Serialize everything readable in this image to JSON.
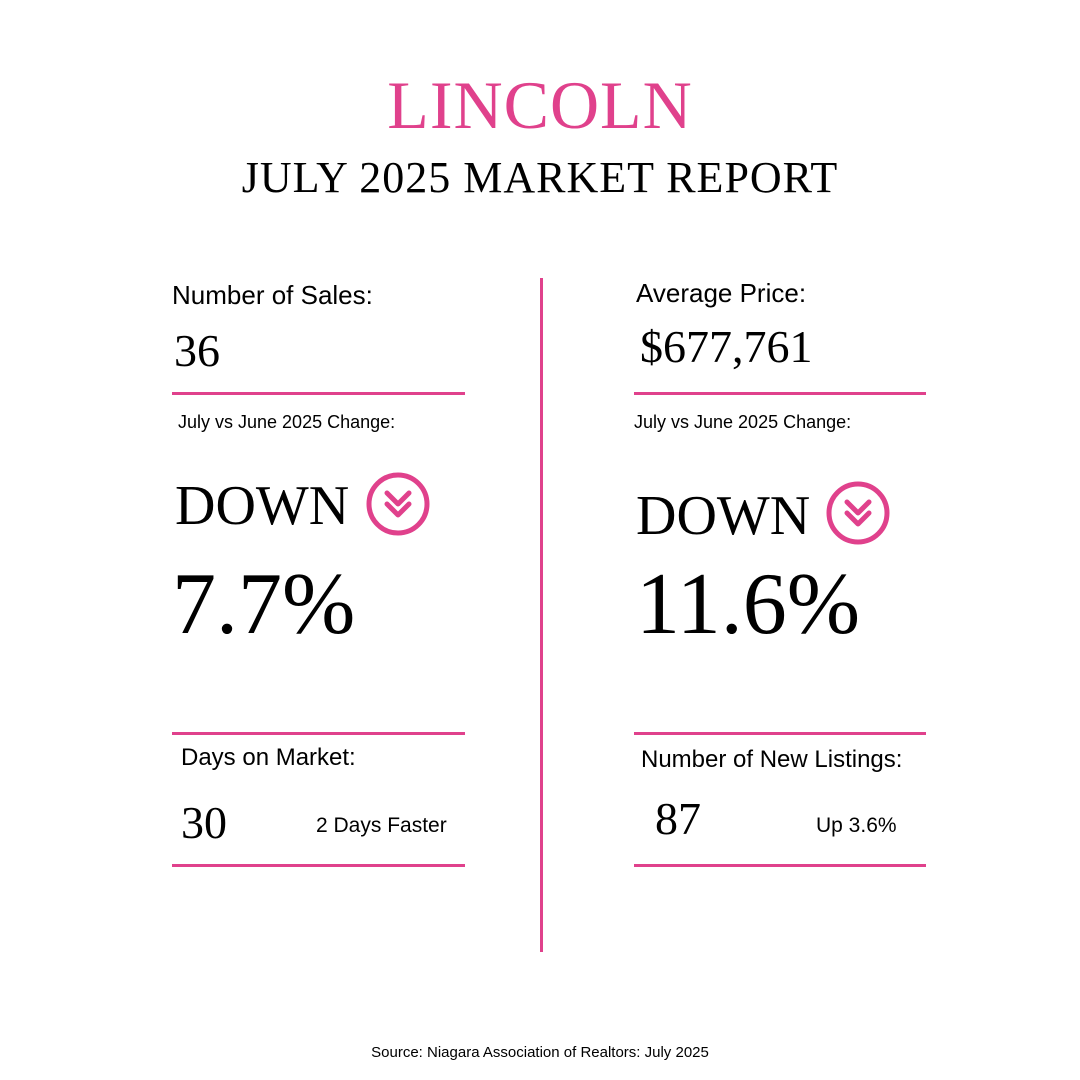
{
  "header": {
    "city": "LINCOLN",
    "subtitle": "JULY 2025 MARKET REPORT"
  },
  "colors": {
    "accent": "#e0418c",
    "text": "#000000",
    "background": "#ffffff"
  },
  "left": {
    "sales_label": "Number of Sales:",
    "sales_value": "36",
    "change_label": "July vs June 2025 Change:",
    "direction": "DOWN",
    "direction_icon": "double-chevron-down-icon",
    "change_percent": "7.7%",
    "dom_label": "Days on Market:",
    "dom_value": "30",
    "dom_note": "2 Days Faster"
  },
  "right": {
    "price_label": "Average Price:",
    "price_value": "$677,761",
    "change_label": "July vs June 2025 Change:",
    "direction": "DOWN",
    "direction_icon": "double-chevron-down-icon",
    "change_percent": "11.6%",
    "listings_label": "Number of New Listings:",
    "listings_value": "87",
    "listings_note": "Up 3.6%"
  },
  "footer": {
    "source": "Source: Niagara Association of Realtors: July 2025"
  }
}
